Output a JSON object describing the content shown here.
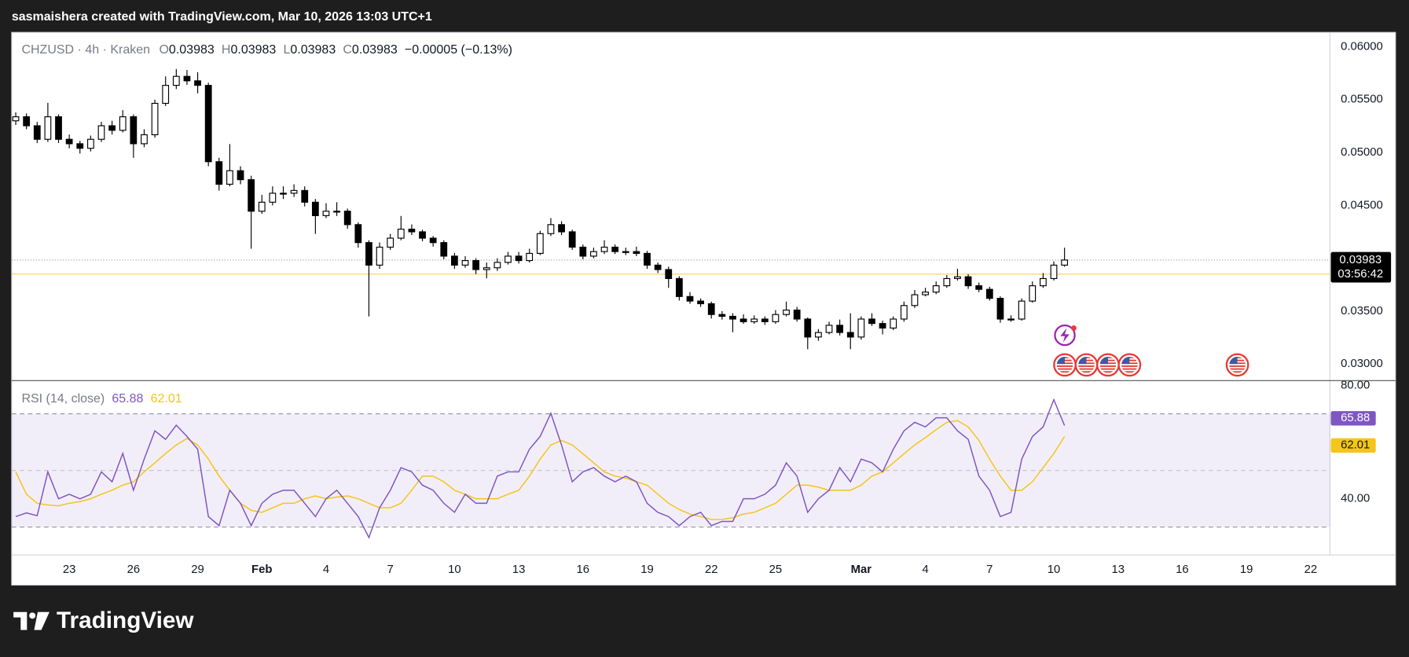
{
  "header": {
    "text": "sasmaishera created with TradingView.com, Mar 10, 2026 13:03 UTC+1"
  },
  "footer": {
    "brand": "TradingView"
  },
  "chart_data": [
    {
      "type": "candlestick",
      "legend": {
        "symbol": "CHZUSD · 4h · Kraken",
        "items": [
          {
            "key": "O",
            "value": "0.03983"
          },
          {
            "key": "H",
            "value": "0.03983"
          },
          {
            "key": "L",
            "value": "0.03983"
          },
          {
            "key": "C",
            "value": "0.03983"
          }
        ],
        "change": "−0.00005 (−0.13%)"
      },
      "x": [
        20.5,
        21,
        21.5,
        22,
        22.5,
        23,
        23.5,
        24,
        24.5,
        25,
        25.5,
        26,
        26.5,
        27,
        27.5,
        28,
        28.5,
        29,
        29.5,
        30,
        30.5,
        31,
        31.5,
        32,
        32.5,
        33,
        33.5,
        34,
        34.5,
        35,
        35.5,
        36,
        36.5,
        37,
        37.5,
        38,
        38.5,
        39,
        39.5,
        40,
        40.5,
        41,
        41.5,
        42,
        42.5,
        43,
        43.5,
        44,
        44.5,
        45,
        45.5,
        46,
        46.5,
        47,
        47.5,
        48,
        48.5,
        49,
        49.5,
        50,
        50.5,
        51,
        51.5,
        52,
        52.5,
        53,
        53.5,
        54,
        54.5,
        55,
        55.5,
        56,
        56.5,
        57,
        57.5,
        58,
        58.5,
        59,
        59.5,
        60,
        60.5,
        61,
        61.5,
        62,
        62.5,
        63,
        63.5,
        64,
        64.5,
        65,
        65.5,
        66,
        66.5,
        67,
        67.5,
        68,
        68.5,
        69,
        69.5
      ],
      "open": [
        0.053,
        0.05338,
        0.05253,
        0.05125,
        0.05338,
        0.05125,
        0.05083,
        0.0504,
        0.05125,
        0.05253,
        0.0521,
        0.05338,
        0.05083,
        0.05168,
        0.05465,
        0.05635,
        0.0572,
        0.05678,
        0.05635,
        0.04913,
        0.047,
        0.04828,
        0.04743,
        0.04445,
        0.0453,
        0.04615,
        0.04615,
        0.04641,
        0.0453,
        0.04403,
        0.04445,
        0.04445,
        0.04318,
        0.04148,
        0.03935,
        0.04105,
        0.0419,
        0.04275,
        0.0425,
        0.0419,
        0.04148,
        0.0402,
        0.03935,
        0.03978,
        0.03893,
        0.0391,
        0.03961,
        0.0402,
        0.03978,
        0.04046,
        0.04233,
        0.04318,
        0.0425,
        0.04105,
        0.0402,
        0.04063,
        0.04105,
        0.04063,
        0.04063,
        0.04046,
        0.03935,
        0.03893,
        0.03808,
        0.03638,
        0.03595,
        0.0357,
        0.03468,
        0.03451,
        0.03425,
        0.034,
        0.03425,
        0.034,
        0.03468,
        0.0351,
        0.03425,
        0.03255,
        0.03298,
        0.03366,
        0.03298,
        0.03255,
        0.03425,
        0.03383,
        0.0334,
        0.03425,
        0.03553,
        0.03655,
        0.0368,
        0.0374,
        0.03808,
        0.03825,
        0.0374,
        0.03706,
        0.03621,
        0.03425,
        0.03425,
        0.03595,
        0.0374,
        0.03808,
        0.03935
      ],
      "high": [
        0.0538,
        0.0537,
        0.0529,
        0.0547,
        0.0536,
        0.0517,
        0.0511,
        0.0516,
        0.0529,
        0.053,
        0.054,
        0.0536,
        0.0522,
        0.055,
        0.0572,
        0.0579,
        0.0578,
        0.0576,
        0.0566,
        0.0495,
        0.0508,
        0.0487,
        0.0478,
        0.046,
        0.0468,
        0.0468,
        0.047,
        0.0468,
        0.0456,
        0.0452,
        0.0453,
        0.0447,
        0.0434,
        0.0417,
        0.0415,
        0.0423,
        0.044,
        0.0432,
        0.0427,
        0.0421,
        0.0417,
        0.0405,
        0.0402,
        0.04,
        0.0396,
        0.04,
        0.0406,
        0.0406,
        0.0409,
        0.0426,
        0.0438,
        0.0435,
        0.0427,
        0.0413,
        0.041,
        0.0417,
        0.0413,
        0.041,
        0.0411,
        0.0407,
        0.0396,
        0.0392,
        0.0383,
        0.0368,
        0.0362,
        0.0359,
        0.035,
        0.0348,
        0.0347,
        0.0346,
        0.0345,
        0.0351,
        0.0359,
        0.0354,
        0.0344,
        0.0333,
        0.034,
        0.0342,
        0.0348,
        0.0345,
        0.0348,
        0.0341,
        0.0345,
        0.0359,
        0.037,
        0.0372,
        0.0378,
        0.0384,
        0.039,
        0.0385,
        0.0377,
        0.0373,
        0.0364,
        0.0346,
        0.0362,
        0.0378,
        0.0386,
        0.0397,
        0.041
      ],
      "low": [
        0.0526,
        0.0522,
        0.0509,
        0.051,
        0.0509,
        0.0504,
        0.0499,
        0.0501,
        0.051,
        0.0517,
        0.0519,
        0.0495,
        0.0505,
        0.0514,
        0.0544,
        0.056,
        0.0564,
        0.0556,
        0.0487,
        0.0464,
        0.0468,
        0.047,
        0.0409,
        0.0442,
        0.045,
        0.0456,
        0.0458,
        0.0449,
        0.0423,
        0.0438,
        0.044,
        0.0428,
        0.041,
        0.0345,
        0.039,
        0.0408,
        0.0417,
        0.0422,
        0.0416,
        0.0411,
        0.0399,
        0.039,
        0.0391,
        0.0385,
        0.0381,
        0.0388,
        0.0394,
        0.0395,
        0.0396,
        0.0403,
        0.0421,
        0.0422,
        0.0408,
        0.0399,
        0.04,
        0.0404,
        0.0404,
        0.0403,
        0.0402,
        0.039,
        0.0386,
        0.0372,
        0.036,
        0.0357,
        0.0354,
        0.0343,
        0.0342,
        0.033,
        0.0338,
        0.0338,
        0.0337,
        0.0338,
        0.0345,
        0.034,
        0.0314,
        0.0322,
        0.0328,
        0.0327,
        0.0314,
        0.0323,
        0.0336,
        0.0328,
        0.0332,
        0.034,
        0.0353,
        0.0364,
        0.0366,
        0.0372,
        0.0379,
        0.0371,
        0.0368,
        0.036,
        0.0339,
        0.034,
        0.0341,
        0.0358,
        0.0372,
        0.0379,
        0.0392
      ],
      "close": [
        0.05338,
        0.05253,
        0.05125,
        0.05338,
        0.05125,
        0.05083,
        0.0504,
        0.05125,
        0.05253,
        0.0521,
        0.05338,
        0.05083,
        0.05168,
        0.05465,
        0.05635,
        0.0572,
        0.05678,
        0.05635,
        0.04913,
        0.047,
        0.04828,
        0.04743,
        0.04445,
        0.0453,
        0.04615,
        0.04615,
        0.04641,
        0.0453,
        0.04403,
        0.04445,
        0.04445,
        0.04318,
        0.04148,
        0.03935,
        0.04105,
        0.0419,
        0.04275,
        0.0425,
        0.0419,
        0.04148,
        0.0402,
        0.03935,
        0.03978,
        0.03893,
        0.0391,
        0.03961,
        0.0402,
        0.03978,
        0.04046,
        0.04233,
        0.04318,
        0.0425,
        0.04105,
        0.0402,
        0.04063,
        0.04105,
        0.04063,
        0.04063,
        0.04046,
        0.03935,
        0.03893,
        0.03808,
        0.03638,
        0.03595,
        0.0357,
        0.03468,
        0.03451,
        0.03425,
        0.034,
        0.03425,
        0.034,
        0.03468,
        0.0351,
        0.03425,
        0.03255,
        0.03298,
        0.03366,
        0.03298,
        0.03255,
        0.03425,
        0.03383,
        0.0334,
        0.03425,
        0.03553,
        0.03655,
        0.0368,
        0.0374,
        0.03808,
        0.03825,
        0.0374,
        0.03706,
        0.03621,
        0.03425,
        0.03425,
        0.03595,
        0.0374,
        0.03808,
        0.03935,
        0.03983
      ],
      "up_color": "#ffffff",
      "down_color": "#000000",
      "border_color": "#000000",
      "xlim": [
        20.31,
        81.9
      ],
      "xticks": [
        23,
        26,
        29,
        {
          "value": 32,
          "label": "Feb"
        },
        {
          "value": 35,
          "label": "4"
        },
        {
          "value": 38,
          "label": "7"
        },
        {
          "value": 41,
          "label": "10"
        },
        {
          "value": 44,
          "label": "13"
        },
        {
          "value": 47,
          "label": "16"
        },
        {
          "value": 50,
          "label": "19"
        },
        {
          "value": 53,
          "label": "22"
        },
        {
          "value": 56,
          "label": "25"
        },
        {
          "value": 60,
          "label": "Mar"
        },
        {
          "value": 63,
          "label": "4"
        },
        {
          "value": 66,
          "label": "7"
        },
        {
          "value": 69,
          "label": "10"
        },
        {
          "value": 72,
          "label": "13"
        },
        {
          "value": 75,
          "label": "16"
        },
        {
          "value": 78,
          "label": "19"
        },
        {
          "value": 81,
          "label": "22"
        }
      ],
      "ylim": [
        0.02847,
        0.06136
      ],
      "yticks": [
        {
          "value": 0.03,
          "label": "0.03000"
        },
        {
          "value": 0.035,
          "label": "0.03500"
        },
        {
          "value": 0.04,
          "label": "0.04000"
        },
        {
          "value": 0.045,
          "label": "0.04500"
        },
        {
          "value": 0.05,
          "label": "0.05000"
        },
        {
          "value": 0.055,
          "label": "0.05500"
        },
        {
          "value": 0.06,
          "label": "0.06000"
        }
      ],
      "countdown": "03:56:42",
      "horizontal_line": {
        "value": 0.0385,
        "color": "#f7d354"
      }
    },
    {
      "type": "line",
      "title": "RSI (14, close)",
      "series": [
        {
          "color": "#7e57c2",
          "values": [
            33.7,
            35,
            34,
            49.5,
            40,
            41.6,
            40,
            41.6,
            49.5,
            46,
            56,
            43,
            54,
            64,
            61,
            66,
            62,
            57.5,
            33.7,
            30.5,
            43,
            38.4,
            30.5,
            38.4,
            41.6,
            43,
            43,
            38.4,
            33.7,
            40,
            43,
            38.4,
            33.7,
            26.3,
            36.8,
            43,
            51,
            49.5,
            44.8,
            43,
            38.4,
            35.2,
            41.6,
            38.4,
            38.4,
            48,
            49.5,
            49.5,
            57.5,
            62,
            70.2,
            59,
            46,
            49.5,
            51,
            48,
            46,
            48,
            46,
            38.4,
            35.2,
            33.7,
            30.5,
            33.7,
            35.2,
            30.5,
            32,
            32,
            40,
            40,
            41.6,
            44.8,
            52.7,
            48,
            35.2,
            40,
            43,
            51,
            46,
            54,
            52.7,
            49.5,
            57.5,
            64,
            67,
            65.4,
            68.6,
            68.6,
            64,
            61,
            48,
            43,
            33.7,
            35.2,
            54,
            62,
            65.4,
            75,
            65.88
          ]
        },
        {
          "color": "#f5c518",
          "values": [
            49.5,
            41.6,
            38.4,
            37.8,
            37.5,
            38.4,
            39,
            40,
            41.6,
            43,
            44.8,
            46,
            49.5,
            52.7,
            56,
            59,
            61.3,
            59,
            54,
            48,
            43,
            38.4,
            35.9,
            35.2,
            36.8,
            38.4,
            38.4,
            40,
            41,
            40,
            40.6,
            41,
            40,
            38.4,
            36.8,
            36.8,
            38.4,
            43,
            48,
            48,
            46,
            43,
            41.6,
            40,
            40,
            40,
            41.6,
            43,
            48,
            54,
            59,
            60.6,
            59,
            55.9,
            52.7,
            49.5,
            48,
            47.3,
            46,
            44.8,
            41.6,
            38.4,
            36.2,
            34.6,
            33.7,
            32.7,
            32.7,
            33.3,
            34.6,
            35.2,
            36.8,
            38.4,
            41.6,
            44.8,
            44.8,
            44.1,
            43,
            43,
            43,
            44.8,
            48,
            49.5,
            52.7,
            55.9,
            59,
            61.6,
            64.4,
            67,
            67.6,
            65.4,
            60.6,
            54,
            48,
            43,
            43,
            46,
            51,
            56,
            62.01
          ]
        }
      ],
      "ylim": [
        20.3,
        81.9
      ],
      "yticks": [
        {
          "value": 80,
          "label": "80.00"
        },
        {
          "value": 40,
          "label": "40.00"
        }
      ],
      "bands": [
        70,
        50,
        30
      ],
      "band_color": "#7e57c2"
    }
  ]
}
